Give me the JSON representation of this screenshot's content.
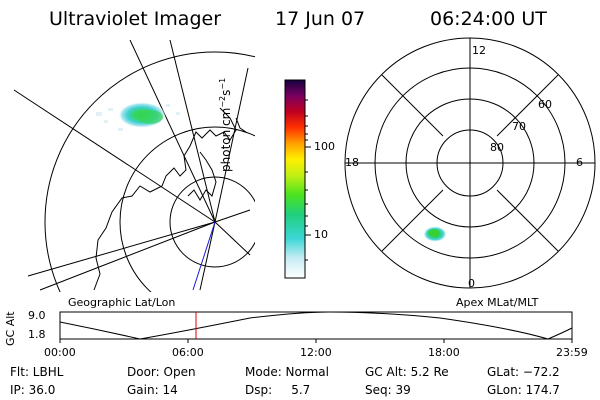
{
  "header": {
    "title": "Ultraviolet Imager",
    "date": "17 Jun 07",
    "time": "06:24:00 UT"
  },
  "colorbar": {
    "unit_label": "photon cm-2s-1",
    "unit_base": "photon cm",
    "unit_exp": "−2",
    "unit_tail": "s",
    "unit_exp2": "−1",
    "tick_high": "100",
    "tick_low": "10"
  },
  "polar": {
    "mlt_top": "12",
    "mlt_left": "18",
    "mlt_right": "6",
    "mlt_bottom": "0",
    "lat_60": "60",
    "lat_70": "70",
    "lat_80": "80"
  },
  "frames": {
    "left_label": "Geographic Lat/Lon",
    "right_label": "Apex MLat/MLT"
  },
  "altplot": {
    "ylabel": "GC Alt",
    "ytick_high": "9.0",
    "ytick_low": "1.8",
    "xticks": [
      "00:00",
      "06:00",
      "12:00",
      "18:00",
      "23:59"
    ],
    "marker_color": "#e00000"
  },
  "info": {
    "flt": "Flt: LBHL",
    "ip": "IP: 36.0",
    "door": "Door: Open",
    "gain": "Gain: 14",
    "mode": "Mode: Normal",
    "dsp": "Dsp:     5.7",
    "gcalt": "GC Alt: 5.2 Re",
    "seq": "Seq: 39",
    "glat": "GLat: −72.2",
    "glon": "GLon: 174.7"
  }
}
